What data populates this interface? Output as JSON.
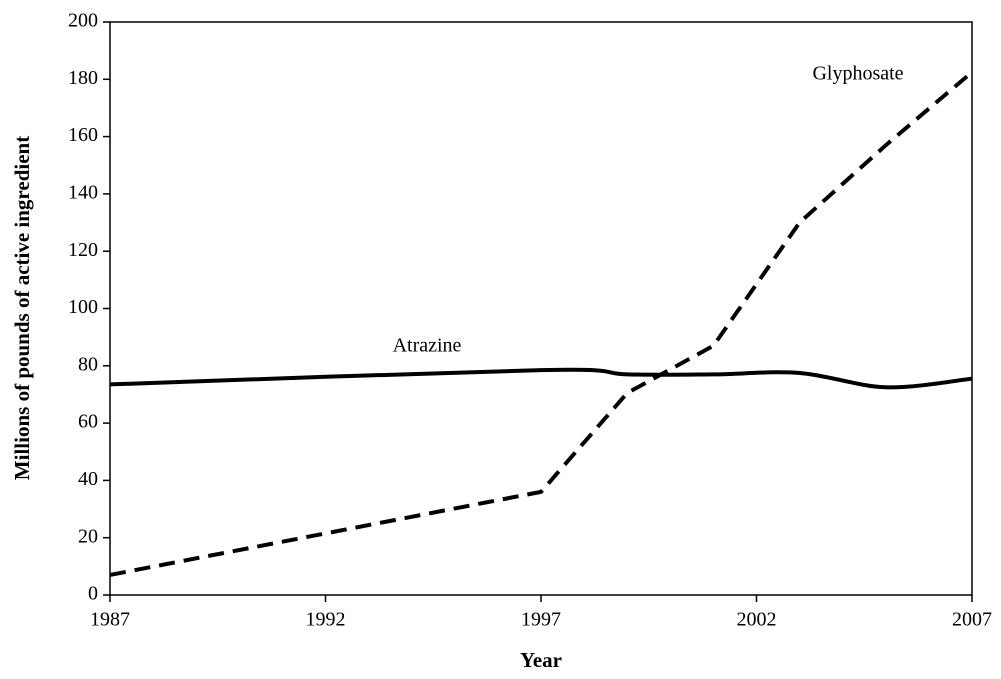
{
  "chart_data": {
    "type": "line",
    "x": [
      1987,
      1997,
      1999,
      2001,
      2003,
      2005,
      2007
    ],
    "series": [
      {
        "name": "Atrazine",
        "color": "#000000",
        "dash": false,
        "values": [
          73.5,
          78.5,
          77,
          77,
          77.5,
          72.5,
          75.5
        ]
      },
      {
        "name": "Glyphosate",
        "color": "#000000",
        "dash": true,
        "values": [
          7,
          36,
          70.5,
          87,
          130,
          157,
          182.5
        ]
      }
    ],
    "annotations": [
      "Atrazine",
      "Glyphosate"
    ],
    "xlabel": "Year",
    "ylabel": "Millions of pounds of active ingredient",
    "xlim": [
      1987,
      2007
    ],
    "xticks": [
      1987,
      1992,
      1997,
      2002,
      2007
    ],
    "ylim": [
      0,
      200
    ],
    "yticks": [
      0,
      20,
      40,
      60,
      80,
      100,
      120,
      140,
      160,
      180,
      200
    ],
    "grid": false
  }
}
